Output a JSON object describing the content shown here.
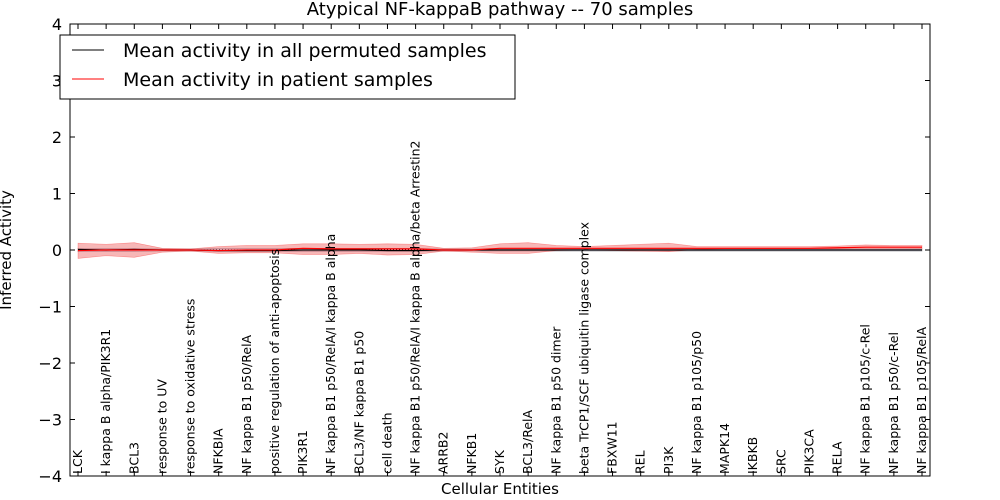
{
  "chart_data": {
    "type": "line",
    "title": "Atypical NF-kappaB pathway -- 70 samples",
    "xlabel": "Cellular Entities",
    "ylabel": "Inferred Activity",
    "ylim": [
      -4,
      4
    ],
    "yticks": [
      "−4",
      "−3",
      "−2",
      "−1",
      "0",
      "1",
      "2",
      "3",
      "4"
    ],
    "grid": false,
    "legend_position": "top-left",
    "categories": [
      "LCK",
      "I kappa B alpha/PIK3R1",
      "BCL3",
      "response to UV",
      "response to oxidative stress",
      "NFKBIA",
      "NF kappa B1 p50/RelA",
      "positive regulation of anti-apoptosis",
      "PIK3R1",
      "NF kappa B1 p50/RelA/I kappa B alpha",
      "BCL3/NF kappa B1 p50",
      "cell death",
      "NF kappa B1 p50/RelA/I kappa B alpha/beta Arrestin2",
      "ARRB2",
      "NFKB1",
      "SYK",
      "BCL3/RelA",
      "NF kappa B1 p50 dimer",
      "beta TrCP1/SCF ubiquitin ligase complex",
      "FBXW11",
      "REL",
      "PI3K",
      "NF kappa B1 p105/p50",
      "MAPK14",
      "IKBKB",
      "SRC",
      "PIK3CA",
      "RELA",
      "NF kappa B1 p105/c-Rel",
      "NF kappa B1 p50/c-Rel",
      "NF kappa B1 p105/RelA"
    ],
    "series": [
      {
        "name": "Mean activity in all permuted samples",
        "color": "#000000",
        "values": [
          0.01,
          0.0,
          0.01,
          0.0,
          0.0,
          -0.01,
          -0.01,
          -0.01,
          0.0,
          0.0,
          0.0,
          -0.01,
          -0.01,
          0.0,
          0.0,
          0.0,
          0.0,
          0.0,
          0.0,
          0.0,
          0.0,
          0.0,
          0.0,
          0.0,
          0.0,
          0.0,
          0.0,
          0.0,
          0.0,
          0.0,
          0.0
        ],
        "lower": [
          -0.03,
          -0.03,
          -0.03,
          -0.02,
          -0.02,
          -0.03,
          -0.03,
          -0.03,
          -0.03,
          -0.03,
          -0.03,
          -0.03,
          -0.03,
          -0.02,
          -0.02,
          -0.02,
          -0.02,
          -0.02,
          -0.02,
          -0.02,
          -0.02,
          -0.02,
          -0.02,
          -0.02,
          -0.02,
          -0.02,
          -0.02,
          -0.02,
          -0.02,
          -0.02,
          -0.02
        ],
        "upper": [
          0.03,
          0.03,
          0.03,
          0.02,
          0.02,
          0.03,
          0.03,
          0.03,
          0.03,
          0.03,
          0.03,
          0.03,
          0.03,
          0.02,
          0.02,
          0.02,
          0.02,
          0.02,
          0.02,
          0.02,
          0.02,
          0.02,
          0.02,
          0.02,
          0.02,
          0.02,
          0.02,
          0.02,
          0.02,
          0.02,
          0.02
        ]
      },
      {
        "name": "Mean activity in patient samples",
        "color": "#ff0000",
        "values": [
          -0.01,
          0.0,
          0.0,
          0.0,
          0.0,
          -0.01,
          0.0,
          0.0,
          0.03,
          0.02,
          0.02,
          0.02,
          0.02,
          0.0,
          0.0,
          0.03,
          0.03,
          0.03,
          0.03,
          0.03,
          0.03,
          0.03,
          0.03,
          0.03,
          0.03,
          0.03,
          0.03,
          0.04,
          0.05,
          0.05,
          0.05
        ],
        "lower": [
          -0.15,
          -0.1,
          -0.13,
          -0.04,
          -0.02,
          -0.06,
          -0.05,
          -0.05,
          -0.08,
          -0.08,
          -0.06,
          -0.09,
          -0.08,
          -0.02,
          -0.04,
          -0.06,
          -0.06,
          -0.01,
          0.0,
          -0.01,
          -0.02,
          -0.03,
          0.01,
          0.02,
          0.02,
          0.02,
          0.02,
          0.02,
          0.02,
          0.02,
          0.02
        ],
        "upper": [
          0.12,
          0.1,
          0.13,
          0.03,
          0.02,
          0.06,
          0.08,
          0.08,
          0.11,
          0.11,
          0.1,
          0.11,
          0.1,
          0.03,
          0.04,
          0.11,
          0.13,
          0.08,
          0.06,
          0.08,
          0.1,
          0.12,
          0.06,
          0.06,
          0.06,
          0.06,
          0.06,
          0.07,
          0.09,
          0.08,
          0.08
        ]
      }
    ],
    "zero_line": {
      "style": "dotted",
      "color": "#000000"
    }
  }
}
